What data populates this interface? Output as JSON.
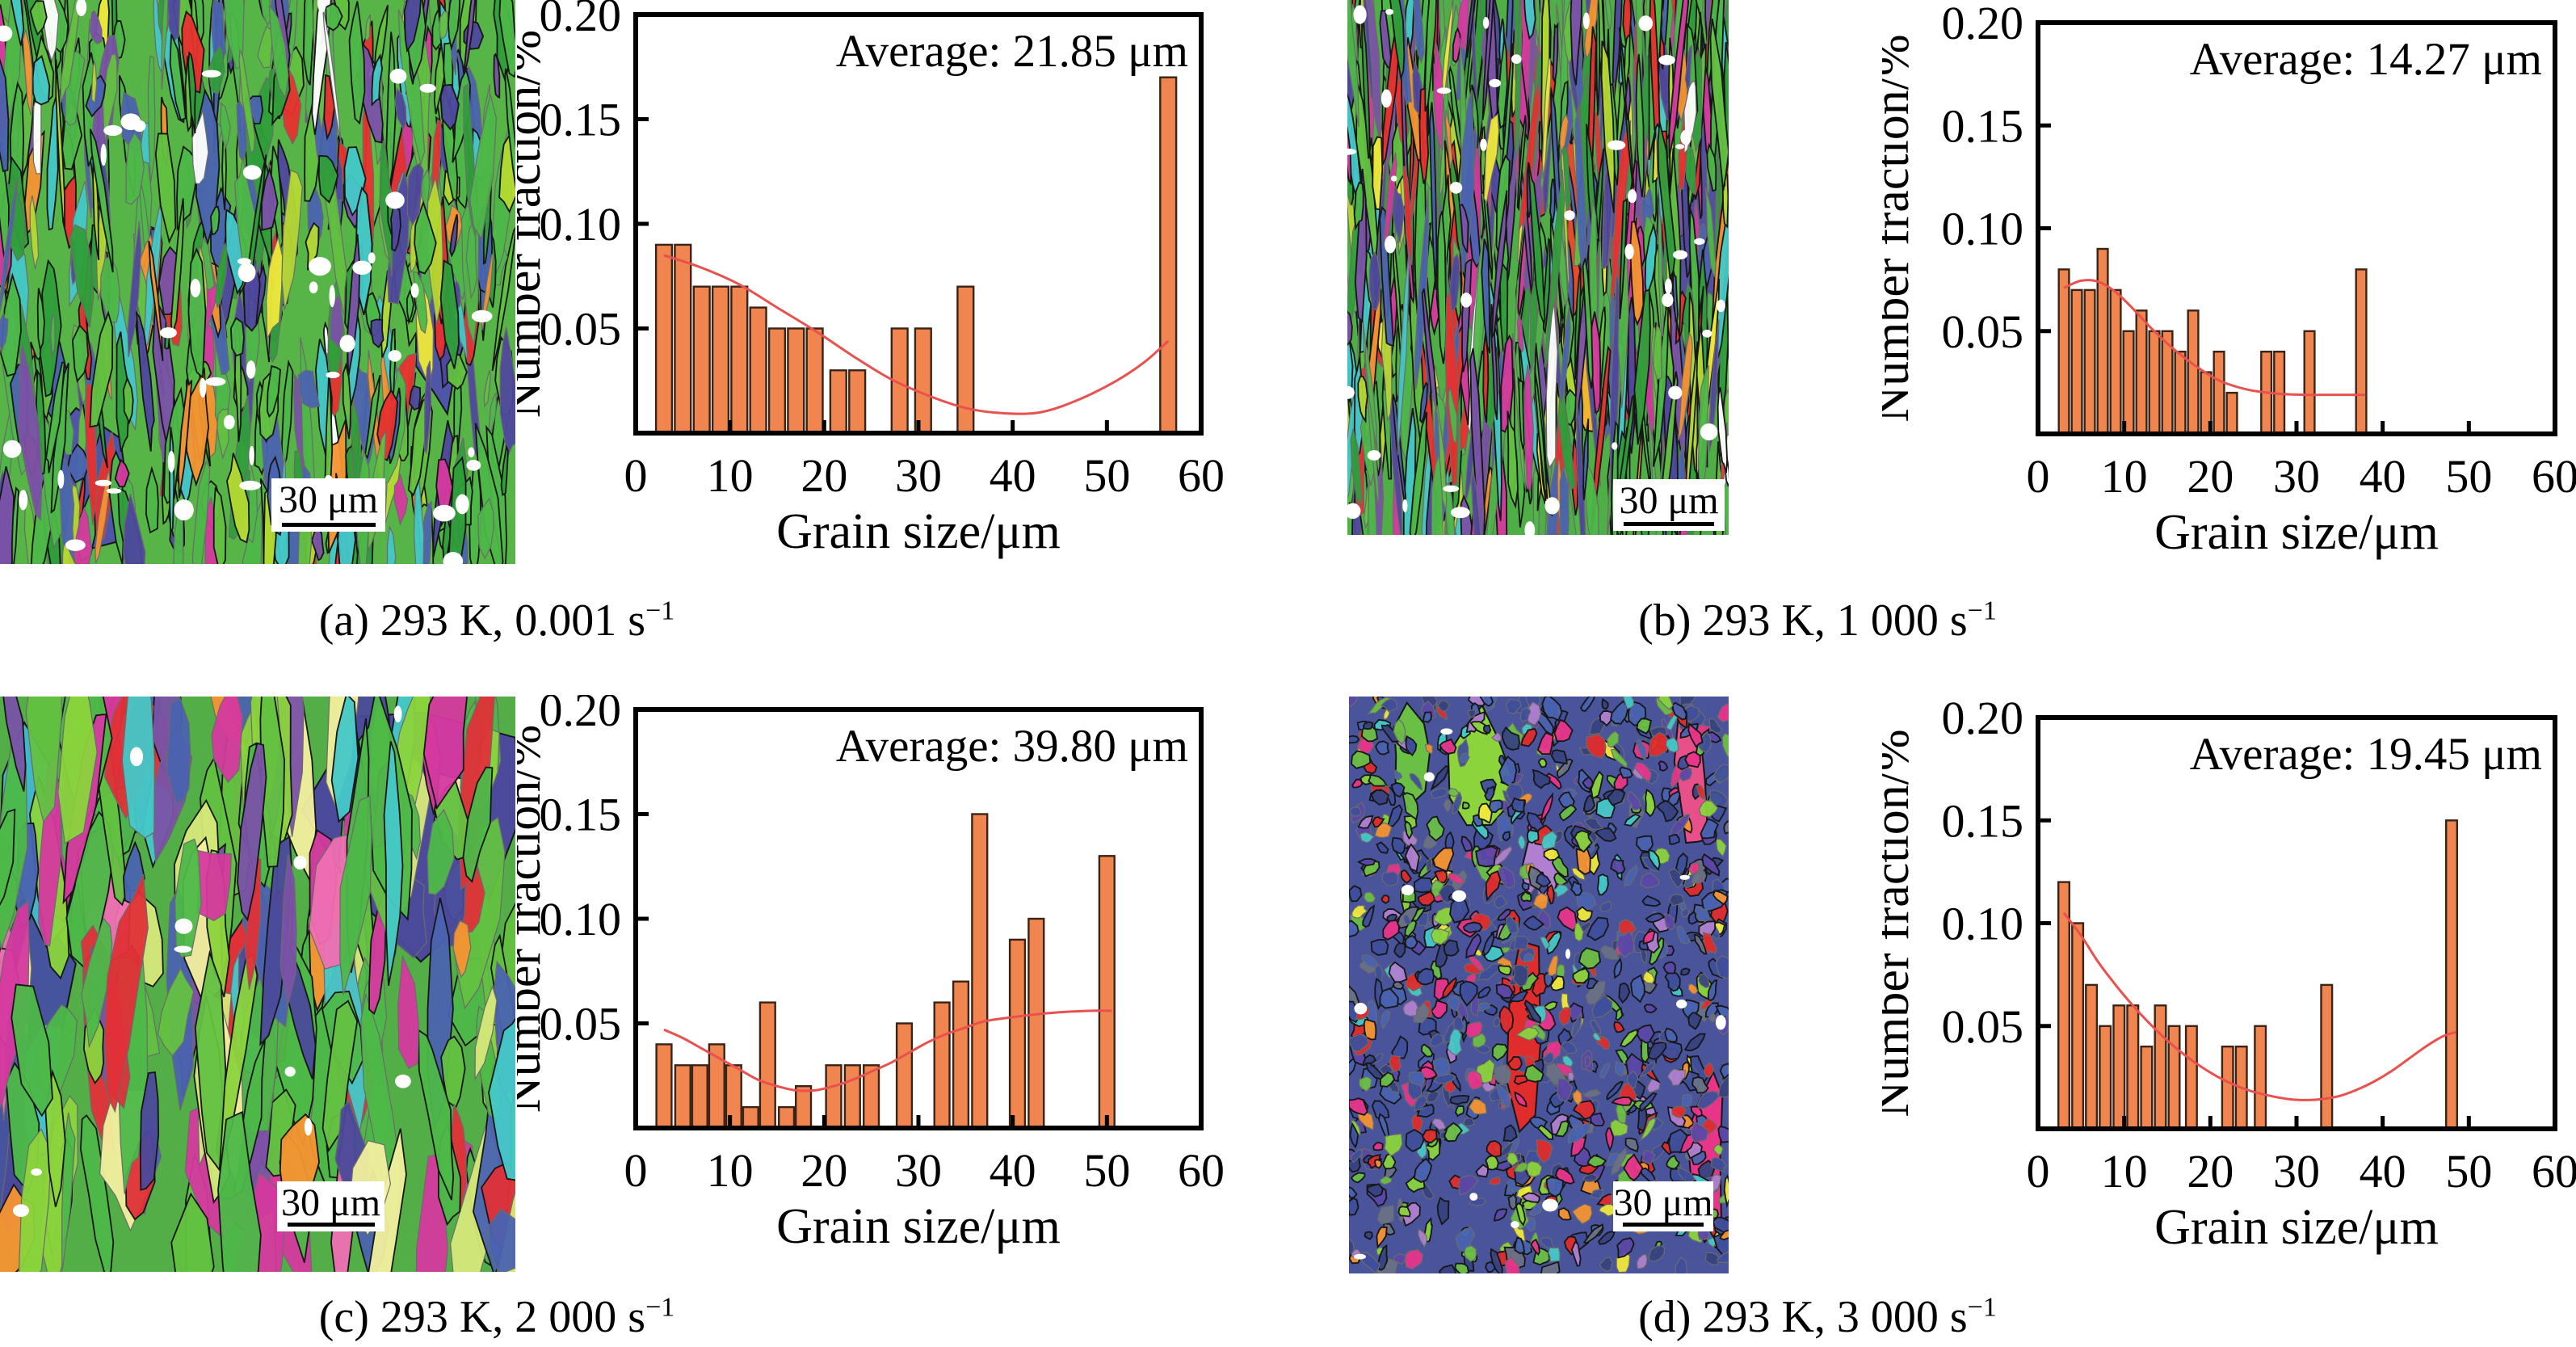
{
  "figure": {
    "background": "#ffffff",
    "panels": [
      {
        "id": "a",
        "caption": {
          "text": "(a) 293 K, 0.001 s",
          "sup": "−1"
        },
        "micrograph": {
          "scale_bar_label": "30 μm",
          "style": "elongated-vertical-grains",
          "palette": [
            [
              "#4db848",
              26
            ],
            [
              "#63c141",
              12
            ],
            [
              "#2f9e3a",
              12
            ],
            [
              "#b5d933",
              5
            ],
            [
              "#45c8c8",
              7
            ],
            [
              "#4a63b0",
              8
            ],
            [
              "#4f489e",
              7
            ],
            [
              "#7a52a8",
              6
            ],
            [
              "#d5399f",
              5
            ],
            [
              "#e8302e",
              6
            ],
            [
              "#f59331",
              3
            ],
            [
              "#efe93a",
              2
            ],
            [
              "#ffffff",
              1
            ]
          ]
        }
      },
      {
        "id": "b",
        "caption": {
          "text": "(b) 293 K, 1 000 s",
          "sup": "−1"
        },
        "micrograph": {
          "scale_bar_label": "30 μm",
          "style": "thin-elongated-vertical-grains",
          "palette": [
            [
              "#4db848",
              26
            ],
            [
              "#63c141",
              10
            ],
            [
              "#2f9e3a",
              12
            ],
            [
              "#b5d933",
              4
            ],
            [
              "#45c8c8",
              6
            ],
            [
              "#4a63b0",
              9
            ],
            [
              "#4f489e",
              8
            ],
            [
              "#7a52a8",
              7
            ],
            [
              "#d5399f",
              6
            ],
            [
              "#e8302e",
              6
            ],
            [
              "#f59331",
              3
            ],
            [
              "#efe93a",
              2
            ],
            [
              "#ffffff",
              1
            ]
          ]
        }
      },
      {
        "id": "c",
        "caption": {
          "text": "(c) 293 K, 2 000 s",
          "sup": "−1"
        },
        "micrograph": {
          "scale_bar_label": "30 μm",
          "style": "coarse-vertical-grains",
          "palette": [
            [
              "#4db848",
              22
            ],
            [
              "#63c141",
              10
            ],
            [
              "#8bd43c",
              8
            ],
            [
              "#d6e87a",
              5
            ],
            [
              "#45c8c8",
              7
            ],
            [
              "#4a63b0",
              9
            ],
            [
              "#4b4a9b",
              9
            ],
            [
              "#7a52a8",
              6
            ],
            [
              "#d5399f",
              8
            ],
            [
              "#e03038",
              7
            ],
            [
              "#f59331",
              3
            ],
            [
              "#f2ef9e",
              4
            ],
            [
              "#ef6fb3",
              4
            ]
          ]
        }
      },
      {
        "id": "d",
        "caption": {
          "text": "(d) 293 K, 3 000 s",
          "sup": "−1"
        },
        "micrograph": {
          "scale_bar_label": "30 μm",
          "style": "fine-mottled-grains",
          "palette": [
            [
              "#3f4f9b",
              20
            ],
            [
              "#4a63b0",
              12
            ],
            [
              "#38437f",
              12
            ],
            [
              "#5c48a8",
              8
            ],
            [
              "#6a7287",
              6
            ],
            [
              "#e02c2c",
              8
            ],
            [
              "#e8358a",
              7
            ],
            [
              "#6abf45",
              8
            ],
            [
              "#8bd43c",
              5
            ],
            [
              "#45c8c8",
              4
            ],
            [
              "#f59331",
              3
            ],
            [
              "#efe93a",
              3
            ],
            [
              "#b07fd0",
              4
            ]
          ]
        }
      }
    ]
  },
  "chart_data": [
    {
      "type": "bar",
      "panel": "a",
      "annotation": "Average: 21.85 μm",
      "xlabel": "Grain size/μm",
      "ylabel": "Number fraction/%",
      "xlim": [
        0,
        60
      ],
      "ylim": [
        0,
        0.2
      ],
      "xtick_labels": [
        "0",
        "10",
        "20",
        "30",
        "40",
        "50",
        "60"
      ],
      "ytick_vals": [
        0.05,
        0.1,
        0.15,
        0.2
      ],
      "ytick_labels": [
        "0.05",
        "0.10",
        "0.15",
        "0.20"
      ],
      "grid": false,
      "legend": null,
      "bin_width_um": 2.0,
      "bars": [
        [
          3,
          0.09
        ],
        [
          5,
          0.09
        ],
        [
          7,
          0.07
        ],
        [
          9,
          0.07
        ],
        [
          11,
          0.07
        ],
        [
          13,
          0.06
        ],
        [
          15,
          0.05
        ],
        [
          17,
          0.05
        ],
        [
          19,
          0.05
        ],
        [
          21.5,
          0.03
        ],
        [
          23.5,
          0.03
        ],
        [
          28,
          0.05
        ],
        [
          30.5,
          0.05
        ],
        [
          35,
          0.07
        ],
        [
          56.5,
          0.17
        ]
      ],
      "fit_curve": [
        [
          3,
          0.085
        ],
        [
          7,
          0.079
        ],
        [
          11,
          0.071
        ],
        [
          15,
          0.06
        ],
        [
          19,
          0.049
        ],
        [
          23,
          0.037
        ],
        [
          27,
          0.026
        ],
        [
          31,
          0.018
        ],
        [
          35,
          0.012
        ],
        [
          39,
          0.0095
        ],
        [
          43,
          0.01
        ],
        [
          47,
          0.016
        ],
        [
          51,
          0.025
        ],
        [
          54,
          0.034
        ],
        [
          56.5,
          0.044
        ]
      ],
      "colors": {
        "bar": "#F0854F",
        "bar_edge": "#3A2417",
        "curve": "#E8514D",
        "frame": "#000000"
      }
    },
    {
      "type": "bar",
      "panel": "b",
      "annotation": "Average: 14.27 μm",
      "xlabel": "Grain size/μm",
      "ylabel": "Number fraction/%",
      "xlim": [
        0,
        60
      ],
      "ylim": [
        0,
        0.2
      ],
      "xtick_labels": [
        "0",
        "10",
        "20",
        "30",
        "40",
        "50",
        "60"
      ],
      "ytick_vals": [
        0.05,
        0.1,
        0.15,
        0.2
      ],
      "ytick_labels": [
        "0.05",
        "0.10",
        "0.15",
        "0.20"
      ],
      "grid": false,
      "legend": null,
      "bin_width_um": 1.4,
      "bars": [
        [
          3,
          0.08
        ],
        [
          4.5,
          0.07
        ],
        [
          6,
          0.07
        ],
        [
          7.5,
          0.09
        ],
        [
          9,
          0.07
        ],
        [
          10.5,
          0.05
        ],
        [
          12,
          0.06
        ],
        [
          13.5,
          0.05
        ],
        [
          15,
          0.05
        ],
        [
          16.5,
          0.04
        ],
        [
          18,
          0.06
        ],
        [
          19.5,
          0.03
        ],
        [
          21,
          0.04
        ],
        [
          22.5,
          0.02
        ],
        [
          26.5,
          0.04
        ],
        [
          28,
          0.04
        ],
        [
          31.5,
          0.05
        ],
        [
          37.5,
          0.08
        ]
      ],
      "fit_curve": [
        [
          3,
          0.071
        ],
        [
          5,
          0.0745
        ],
        [
          7,
          0.074
        ],
        [
          9,
          0.069
        ],
        [
          11,
          0.061
        ],
        [
          13,
          0.052
        ],
        [
          15,
          0.044
        ],
        [
          17,
          0.037
        ],
        [
          19,
          0.031
        ],
        [
          21,
          0.026
        ],
        [
          23,
          0.023
        ],
        [
          25,
          0.021
        ],
        [
          28,
          0.0195
        ],
        [
          31,
          0.019
        ],
        [
          34,
          0.019
        ],
        [
          38,
          0.019
        ]
      ],
      "colors": {
        "bar": "#F0854F",
        "bar_edge": "#3A2417",
        "curve": "#E8514D",
        "frame": "#000000"
      }
    },
    {
      "type": "bar",
      "panel": "c",
      "annotation": "Average: 39.80 μm",
      "xlabel": "Grain size/μm",
      "ylabel": "Number fraction/%",
      "xlim": [
        0,
        60
      ],
      "ylim": [
        0,
        0.2
      ],
      "xtick_labels": [
        "0",
        "10",
        "20",
        "30",
        "40",
        "50",
        "60"
      ],
      "ytick_vals": [
        0.05,
        0.1,
        0.15,
        0.2
      ],
      "ytick_labels": [
        "0.05",
        "0.10",
        "0.15",
        "0.20"
      ],
      "grid": false,
      "legend": null,
      "bin_width_um": 1.9,
      "bars": [
        [
          3,
          0.04
        ],
        [
          5,
          0.03
        ],
        [
          6.8,
          0.03
        ],
        [
          8.6,
          0.04
        ],
        [
          10.4,
          0.03
        ],
        [
          12.2,
          0.01
        ],
        [
          14,
          0.06
        ],
        [
          16,
          0.01
        ],
        [
          17.8,
          0.02
        ],
        [
          21,
          0.03
        ],
        [
          23,
          0.03
        ],
        [
          25,
          0.03
        ],
        [
          28.5,
          0.05
        ],
        [
          32.5,
          0.06
        ],
        [
          34.5,
          0.07
        ],
        [
          36.5,
          0.15
        ],
        [
          40.5,
          0.09
        ],
        [
          42.5,
          0.1
        ],
        [
          50,
          0.13
        ]
      ],
      "fit_curve": [
        [
          3,
          0.047
        ],
        [
          5,
          0.043
        ],
        [
          7,
          0.038
        ],
        [
          9,
          0.033
        ],
        [
          11,
          0.028
        ],
        [
          13,
          0.023
        ],
        [
          15,
          0.02
        ],
        [
          17,
          0.018
        ],
        [
          19,
          0.018
        ],
        [
          21,
          0.02
        ],
        [
          23,
          0.023
        ],
        [
          25,
          0.027
        ],
        [
          27,
          0.031
        ],
        [
          29,
          0.036
        ],
        [
          31,
          0.041
        ],
        [
          33,
          0.045
        ],
        [
          35,
          0.048
        ],
        [
          37,
          0.051
        ],
        [
          40,
          0.053
        ],
        [
          44,
          0.055
        ],
        [
          48,
          0.056
        ],
        [
          50.5,
          0.056
        ]
      ],
      "colors": {
        "bar": "#F0854F",
        "bar_edge": "#3A2417",
        "curve": "#E8514D",
        "frame": "#000000"
      }
    },
    {
      "type": "bar",
      "panel": "d",
      "annotation": "Average: 19.45 μm",
      "xlabel": "Grain size/μm",
      "ylabel": "Number fraction/%",
      "xlim": [
        0,
        60
      ],
      "ylim": [
        0,
        0.2
      ],
      "xtick_labels": [
        "0",
        "10",
        "20",
        "30",
        "40",
        "50",
        "60"
      ],
      "ytick_vals": [
        0.05,
        0.1,
        0.15,
        0.2
      ],
      "ytick_labels": [
        "0.05",
        "0.10",
        "0.15",
        "0.20"
      ],
      "grid": false,
      "legend": null,
      "bin_width_um": 1.5,
      "bars": [
        [
          3,
          0.12
        ],
        [
          4.6,
          0.1
        ],
        [
          6.2,
          0.07
        ],
        [
          7.8,
          0.05
        ],
        [
          9.4,
          0.06
        ],
        [
          11,
          0.06
        ],
        [
          12.6,
          0.04
        ],
        [
          14.2,
          0.06
        ],
        [
          15.8,
          0.05
        ],
        [
          17.8,
          0.05
        ],
        [
          22,
          0.04
        ],
        [
          23.6,
          0.04
        ],
        [
          25.8,
          0.05
        ],
        [
          33.5,
          0.07
        ],
        [
          48,
          0.15
        ]
      ],
      "fit_curve": [
        [
          3,
          0.105
        ],
        [
          5,
          0.094
        ],
        [
          7,
          0.081
        ],
        [
          9,
          0.07
        ],
        [
          11,
          0.06
        ],
        [
          13,
          0.051
        ],
        [
          15,
          0.043
        ],
        [
          17,
          0.036
        ],
        [
          19,
          0.03
        ],
        [
          21,
          0.025
        ],
        [
          23,
          0.021
        ],
        [
          25,
          0.018
        ],
        [
          27,
          0.016
        ],
        [
          29,
          0.0145
        ],
        [
          31,
          0.014
        ],
        [
          33,
          0.0145
        ],
        [
          35,
          0.016
        ],
        [
          37,
          0.019
        ],
        [
          39,
          0.023
        ],
        [
          41,
          0.028
        ],
        [
          43,
          0.034
        ],
        [
          45,
          0.04
        ],
        [
          47,
          0.045
        ],
        [
          48.5,
          0.047
        ]
      ],
      "colors": {
        "bar": "#F0854F",
        "bar_edge": "#3A2417",
        "curve": "#E8514D",
        "frame": "#000000"
      }
    }
  ]
}
